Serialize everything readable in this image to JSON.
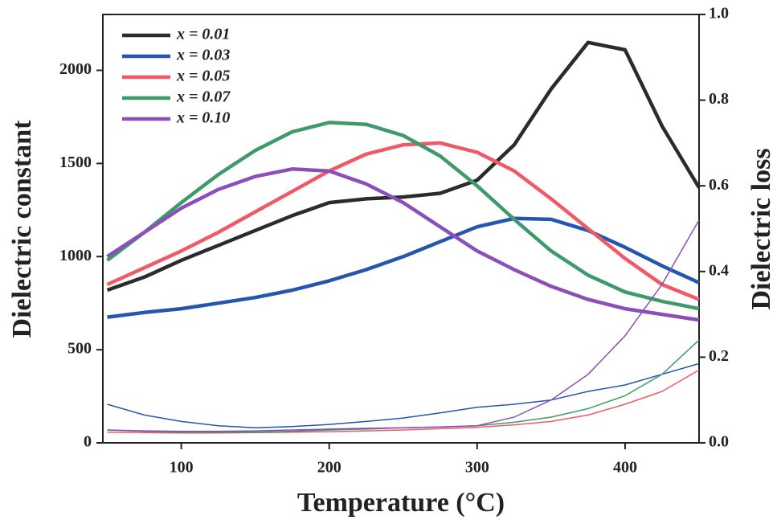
{
  "chart_data": {
    "type": "line",
    "x_label": "Temperature (°C)",
    "y_label": "Dielectric constant",
    "y2_label": "Dielectric loss",
    "x": [
      50,
      75,
      100,
      125,
      150,
      175,
      200,
      225,
      250,
      275,
      300,
      325,
      350,
      375,
      400,
      425,
      450
    ],
    "xlim": [
      47,
      450
    ],
    "xticks": [
      100,
      200,
      300,
      400
    ],
    "ylim": [
      0,
      2300
    ],
    "yticks": [
      0,
      500,
      1000,
      1500,
      2000
    ],
    "y2lim": [
      0,
      1
    ],
    "y2ticks": [
      {
        "value": 0,
        "label": "0.0"
      },
      0.2,
      0.4,
      0.6,
      0.8,
      {
        "value": 1,
        "label": "1.0"
      }
    ],
    "legend": "upper left",
    "series": [
      {
        "name": "x = 0.01",
        "color": "#2b2b2b",
        "values": [
          820,
          890,
          980,
          1060,
          1140,
          1220,
          1290,
          1310,
          1320,
          1340,
          1410,
          1600,
          1900,
          2150,
          2110,
          1700,
          1370
        ]
      },
      {
        "name": "x = 0.03",
        "color": "#2456b0",
        "values": [
          675,
          700,
          720,
          750,
          780,
          820,
          870,
          930,
          1000,
          1080,
          1160,
          1205,
          1200,
          1140,
          1050,
          950,
          860
        ]
      },
      {
        "name": "x = 0.05",
        "color": "#ef5a66",
        "values": [
          850,
          940,
          1030,
          1130,
          1240,
          1350,
          1460,
          1550,
          1600,
          1610,
          1560,
          1460,
          1310,
          1150,
          990,
          850,
          770
        ]
      },
      {
        "name": "x = 0.07",
        "color": "#3e9a6a",
        "values": [
          980,
          1130,
          1290,
          1440,
          1570,
          1670,
          1720,
          1710,
          1650,
          1540,
          1380,
          1200,
          1030,
          900,
          810,
          760,
          720
        ]
      },
      {
        "name": "x = 0.10",
        "color": "#8a4fb8",
        "values": [
          1000,
          1130,
          1260,
          1360,
          1430,
          1470,
          1460,
          1390,
          1290,
          1160,
          1030,
          930,
          840,
          770,
          720,
          690,
          660
        ]
      },
      {
        "color": "#2456b0",
        "axis": "y2",
        "values": [
          0.09,
          0.065,
          0.05,
          0.04,
          0.035,
          0.038,
          0.043,
          0.05,
          0.058,
          0.07,
          0.083,
          0.09,
          0.1,
          0.12,
          0.135,
          0.16,
          0.185
        ]
      },
      {
        "color": "#ef5a66",
        "axis": "y2",
        "values": [
          0.025,
          0.024,
          0.023,
          0.023,
          0.024,
          0.025,
          0.026,
          0.028,
          0.03,
          0.033,
          0.036,
          0.042,
          0.05,
          0.065,
          0.09,
          0.12,
          0.17
        ]
      },
      {
        "color": "#3e9a6a",
        "axis": "y2",
        "values": [
          0.03,
          0.027,
          0.025,
          0.025,
          0.025,
          0.027,
          0.03,
          0.032,
          0.035,
          0.037,
          0.04,
          0.048,
          0.06,
          0.08,
          0.11,
          0.16,
          0.24
        ]
      },
      {
        "color": "#8a4fb8",
        "axis": "y2",
        "values": [
          0.03,
          0.028,
          0.027,
          0.027,
          0.028,
          0.03,
          0.032,
          0.034,
          0.035,
          0.037,
          0.04,
          0.06,
          0.1,
          0.16,
          0.25,
          0.37,
          0.52
        ]
      }
    ]
  }
}
